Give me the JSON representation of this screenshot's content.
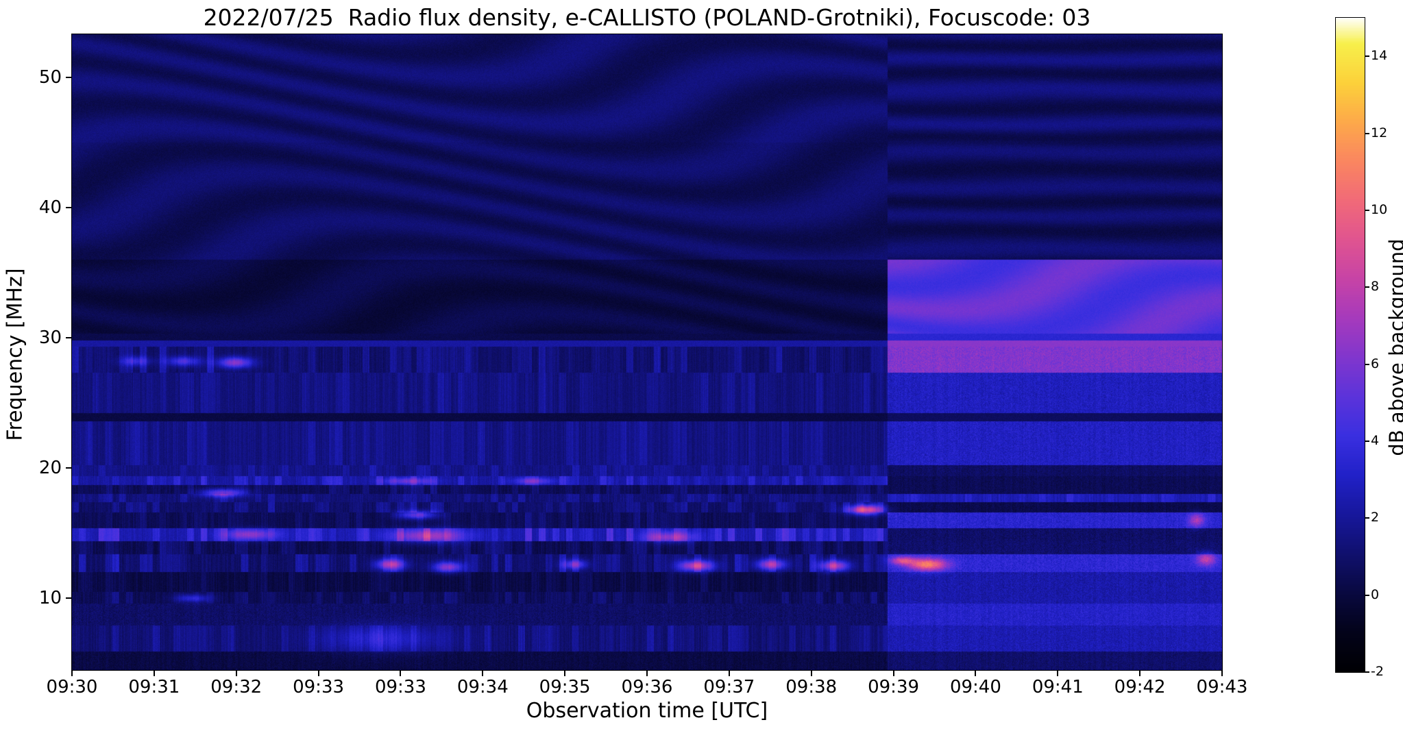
{
  "figure": {
    "title": "2022/07/25  Radio flux density, e-CALLISTO (POLAND-Grotniki), Focuscode: 03",
    "xlabel": "Observation time [UTC]",
    "ylabel": "Frequency [MHz]",
    "colorbar_label": "dB above background"
  },
  "chart_data": {
    "type": "heatmap",
    "title": "2022/07/25  Radio flux density, e-CALLISTO (POLAND-Grotniki), Focuscode: 03",
    "xlabel": "Observation time [UTC]",
    "ylabel": "Frequency [MHz]",
    "x_tick_labels": [
      "09:30",
      "09:31",
      "09:32",
      "09:33",
      "09:33",
      "09:34",
      "09:35",
      "09:36",
      "09:37",
      "09:38",
      "09:39",
      "09:40",
      "09:41",
      "09:42",
      "09:43"
    ],
    "y_ticks_mhz": [
      10,
      20,
      30,
      40,
      50
    ],
    "freq_range_mhz": [
      4.5,
      53.3
    ],
    "value_range_db": [
      -2,
      15
    ],
    "grid": false,
    "legend": "none",
    "colorbar": {
      "label": "dB above background",
      "ticks": [
        -2,
        0,
        2,
        4,
        6,
        8,
        10,
        12,
        14
      ],
      "position": "right"
    },
    "colormap_stops": [
      {
        "t": 0.0,
        "c": "#000003"
      },
      {
        "t": 0.06,
        "c": "#03031a"
      },
      {
        "t": 0.12,
        "c": "#090940"
      },
      {
        "t": 0.18,
        "c": "#10106e"
      },
      {
        "t": 0.24,
        "c": "#17179c"
      },
      {
        "t": 0.3,
        "c": "#2121c8"
      },
      {
        "t": 0.36,
        "c": "#3a2fe0"
      },
      {
        "t": 0.42,
        "c": "#5c33da"
      },
      {
        "t": 0.48,
        "c": "#8136cd"
      },
      {
        "t": 0.54,
        "c": "#a63abc"
      },
      {
        "t": 0.6,
        "c": "#c743a6"
      },
      {
        "t": 0.66,
        "c": "#e05490"
      },
      {
        "t": 0.72,
        "c": "#f16a78"
      },
      {
        "t": 0.78,
        "c": "#fa8660"
      },
      {
        "t": 0.84,
        "c": "#fda94a"
      },
      {
        "t": 0.9,
        "c": "#fcd13a"
      },
      {
        "t": 0.96,
        "c": "#f7f04b"
      },
      {
        "t": 1.0,
        "c": "#ffffff"
      }
    ],
    "receiver_change_t_frac": 0.709,
    "bands": [
      {
        "f_hi": 53.3,
        "f_lo": 45.0,
        "l": 0.9,
        "la": 1.0,
        "ltex": "waves",
        "r": 0.9,
        "ra": 1.4,
        "rtex": "rows"
      },
      {
        "f_hi": 45.0,
        "f_lo": 36.0,
        "l": 0.75,
        "la": 0.9,
        "ltex": "waves",
        "r": 0.7,
        "ra": 1.2,
        "rtex": "rows"
      },
      {
        "f_hi": 36.0,
        "f_lo": 30.3,
        "l": 0.15,
        "la": 0.7,
        "ltex": "waves",
        "r": 5.0,
        "ra": 1.5,
        "rtex": "waves"
      },
      {
        "f_hi": 30.3,
        "f_lo": 29.8,
        "l": 0.3,
        "la": 0.2,
        "ltex": "flat",
        "r": 3.5,
        "ra": 0.4,
        "rtex": "flat"
      },
      {
        "f_hi": 29.8,
        "f_lo": 29.3,
        "l": 2.2,
        "la": 0.3,
        "ltex": "flat",
        "r": 6.4,
        "ra": 0.4,
        "rtex": "flat"
      },
      {
        "f_hi": 29.3,
        "f_lo": 27.3,
        "l": 0.9,
        "la": 1.8,
        "ltex": "dashes",
        "r": 6.2,
        "ra": 1.2,
        "rtex": "speckle"
      },
      {
        "f_hi": 27.3,
        "f_lo": 24.2,
        "l": 1.3,
        "la": 1.1,
        "ltex": "dashes",
        "r": 2.9,
        "ra": 1.0,
        "rtex": "speckle"
      },
      {
        "f_hi": 24.2,
        "f_lo": 23.6,
        "l": 0.1,
        "la": 0.3,
        "ltex": "flat",
        "r": 0.7,
        "ra": 0.3,
        "rtex": "flat"
      },
      {
        "f_hi": 23.6,
        "f_lo": 20.2,
        "l": 1.4,
        "la": 1.0,
        "ltex": "dashes",
        "r": 3.0,
        "ra": 1.0,
        "rtex": "speckle"
      },
      {
        "f_hi": 20.2,
        "f_lo": 19.4,
        "l": 1.5,
        "la": 1.3,
        "ltex": "dashes",
        "r": 0.8,
        "ra": 0.6,
        "rtex": "speckle"
      },
      {
        "f_hi": 19.4,
        "f_lo": 18.7,
        "l": 2.2,
        "la": 2.0,
        "ltex": "dashes",
        "r": 0.5,
        "ra": 0.5,
        "rtex": "speckle"
      },
      {
        "f_hi": 18.7,
        "f_lo": 18.0,
        "l": 0.5,
        "la": 1.2,
        "ltex": "dashes",
        "r": 0.5,
        "ra": 0.5,
        "rtex": "speckle"
      },
      {
        "f_hi": 18.0,
        "f_lo": 17.4,
        "l": 1.2,
        "la": 1.6,
        "ltex": "dashes",
        "r": 2.6,
        "ra": 1.2,
        "rtex": "dashes"
      },
      {
        "f_hi": 17.4,
        "f_lo": 16.6,
        "l": 0.9,
        "la": 1.8,
        "ltex": "dashes",
        "r": 0.3,
        "ra": 0.5,
        "rtex": "speckle"
      },
      {
        "f_hi": 16.6,
        "f_lo": 15.4,
        "l": 0.5,
        "la": 1.2,
        "ltex": "dashes",
        "r": 3.4,
        "ra": 1.1,
        "rtex": "speckle"
      },
      {
        "f_hi": 15.4,
        "f_lo": 14.4,
        "l": 2.5,
        "la": 2.6,
        "ltex": "dashes",
        "r": 0.9,
        "ra": 0.8,
        "rtex": "speckle"
      },
      {
        "f_hi": 14.4,
        "f_lo": 13.4,
        "l": 0.4,
        "la": 1.6,
        "ltex": "dashes",
        "r": 1.0,
        "ra": 0.8,
        "rtex": "speckle"
      },
      {
        "f_hi": 13.4,
        "f_lo": 12.0,
        "l": 0.9,
        "la": 2.2,
        "ltex": "dashes",
        "r": 3.6,
        "ra": 1.1,
        "rtex": "speckle"
      },
      {
        "f_hi": 12.0,
        "f_lo": 10.5,
        "l": 0.15,
        "la": 0.8,
        "ltex": "dashes",
        "r": 2.4,
        "ra": 1.0,
        "rtex": "speckle"
      },
      {
        "f_hi": 10.5,
        "f_lo": 9.6,
        "l": 0.5,
        "la": 1.3,
        "ltex": "dashes",
        "r": 2.4,
        "ra": 0.9,
        "rtex": "speckle"
      },
      {
        "f_hi": 9.6,
        "f_lo": 7.9,
        "l": 0.9,
        "la": 0.7,
        "ltex": "speckle",
        "r": 3.2,
        "ra": 1.0,
        "rtex": "speckle"
      },
      {
        "f_hi": 7.9,
        "f_lo": 5.9,
        "l": 1.1,
        "la": 1.3,
        "ltex": "dashes",
        "r": 2.6,
        "ra": 0.9,
        "rtex": "speckle"
      },
      {
        "f_hi": 5.9,
        "f_lo": 4.5,
        "l": 0.15,
        "la": 0.5,
        "ltex": "speckle",
        "r": 1.0,
        "ra": 0.7,
        "rtex": "speckle"
      }
    ],
    "features": [
      {
        "t": 0.055,
        "f": 28.2,
        "w": 0.012,
        "h": 0.35,
        "amp": 3.0
      },
      {
        "t": 0.097,
        "f": 28.2,
        "w": 0.014,
        "h": 0.35,
        "amp": 3.6
      },
      {
        "t": 0.142,
        "f": 28.1,
        "w": 0.014,
        "h": 0.4,
        "amp": 5.5
      },
      {
        "t": 0.131,
        "f": 18.1,
        "w": 0.018,
        "h": 0.3,
        "amp": 5.0
      },
      {
        "t": 0.292,
        "f": 19.0,
        "w": 0.02,
        "h": 0.25,
        "amp": 3.2
      },
      {
        "t": 0.401,
        "f": 19.0,
        "w": 0.016,
        "h": 0.25,
        "amp": 3.2
      },
      {
        "t": 0.3,
        "f": 16.4,
        "w": 0.016,
        "h": 0.3,
        "amp": 4.6
      },
      {
        "t": 0.69,
        "f": 16.8,
        "w": 0.014,
        "h": 0.35,
        "amp": 8.2
      },
      {
        "t": 0.155,
        "f": 14.9,
        "w": 0.02,
        "h": 0.4,
        "amp": 4.0
      },
      {
        "t": 0.31,
        "f": 14.8,
        "w": 0.03,
        "h": 0.5,
        "amp": 4.5
      },
      {
        "t": 0.52,
        "f": 14.7,
        "w": 0.02,
        "h": 0.4,
        "amp": 4.0
      },
      {
        "t": 0.277,
        "f": 12.6,
        "w": 0.012,
        "h": 0.4,
        "amp": 6.0
      },
      {
        "t": 0.327,
        "f": 12.4,
        "w": 0.012,
        "h": 0.4,
        "amp": 5.5
      },
      {
        "t": 0.437,
        "f": 12.6,
        "w": 0.01,
        "h": 0.35,
        "amp": 4.5
      },
      {
        "t": 0.543,
        "f": 12.5,
        "w": 0.014,
        "h": 0.4,
        "amp": 7.0
      },
      {
        "t": 0.608,
        "f": 12.6,
        "w": 0.012,
        "h": 0.4,
        "amp": 6.0
      },
      {
        "t": 0.663,
        "f": 12.5,
        "w": 0.012,
        "h": 0.4,
        "amp": 6.5
      },
      {
        "t": 0.722,
        "f": 12.9,
        "w": 0.01,
        "h": 0.3,
        "amp": 5.0
      },
      {
        "t": 0.744,
        "f": 12.6,
        "w": 0.016,
        "h": 0.45,
        "amp": 7.5
      },
      {
        "t": 0.986,
        "f": 13.0,
        "w": 0.008,
        "h": 0.5,
        "amp": 4.5
      },
      {
        "t": 0.978,
        "f": 16.0,
        "w": 0.007,
        "h": 0.5,
        "amp": 4.0
      },
      {
        "t": 0.105,
        "f": 10.0,
        "w": 0.014,
        "h": 0.3,
        "amp": 3.0
      },
      {
        "t": 0.27,
        "f": 6.9,
        "w": 0.05,
        "h": 1.0,
        "amp": 2.2
      }
    ]
  }
}
